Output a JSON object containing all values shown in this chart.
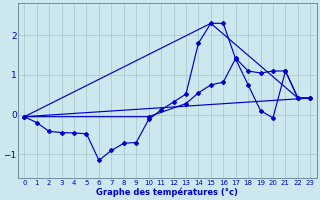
{
  "xlabel": "Graphe des températures (°c)",
  "bg_color": "#cce8ee",
  "grid_color": "#aacccc",
  "line_color": "#0000cc",
  "xlim": [
    -0.5,
    23.5
  ],
  "ylim": [
    -1.6,
    2.8
  ],
  "yticks": [
    -1,
    0,
    1,
    2
  ],
  "xticks": [
    0,
    1,
    2,
    3,
    4,
    5,
    6,
    7,
    8,
    9,
    10,
    11,
    12,
    13,
    14,
    15,
    16,
    17,
    18,
    19,
    20,
    21,
    22,
    23
  ],
  "line1_x": [
    0,
    1,
    2,
    3,
    4,
    5,
    6,
    7,
    8,
    9,
    10,
    11,
    12,
    13,
    14,
    15,
    16,
    17,
    18,
    19,
    20,
    21,
    22,
    23
  ],
  "line1_y": [
    -0.05,
    -0.2,
    -0.42,
    -0.45,
    -0.46,
    -0.48,
    -1.15,
    -0.9,
    -0.72,
    -0.7,
    -0.12,
    0.12,
    0.32,
    0.52,
    1.8,
    2.3,
    2.3,
    1.4,
    0.75,
    0.1,
    -0.08,
    1.1,
    0.42,
    0.42
  ],
  "line2_x": [
    0,
    10,
    13,
    14,
    15,
    16,
    17,
    18,
    19,
    20,
    21,
    22,
    23
  ],
  "line2_y": [
    -0.05,
    -0.05,
    0.28,
    0.55,
    0.75,
    0.82,
    1.42,
    1.1,
    1.05,
    1.1,
    1.1,
    0.42,
    0.42
  ],
  "line3_x": [
    0,
    23
  ],
  "line3_y": [
    -0.05,
    0.42
  ],
  "line4_x": [
    0,
    15,
    22
  ],
  "line4_y": [
    -0.05,
    2.3,
    0.42
  ]
}
